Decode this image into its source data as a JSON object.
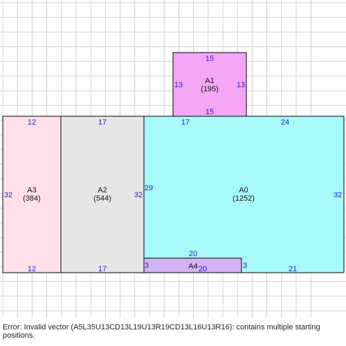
{
  "colors": {
    "grid": "#d0d0d0",
    "border": "#000000",
    "dimension_text": "#1f1fcc",
    "label_text": "#111111"
  },
  "areas": [
    {
      "id": "A1",
      "label": "A1",
      "area": "(195)",
      "fill": "#f5a6f5",
      "dims": {
        "top": "15",
        "bottom": "15",
        "left": "13",
        "right": "13"
      }
    },
    {
      "id": "A3",
      "label": "A3",
      "area": "(384)",
      "fill": "#ffe0ea",
      "dims": {
        "top": "12",
        "bottom": "12",
        "left": "32",
        "right": "32"
      }
    },
    {
      "id": "A2",
      "label": "A2",
      "area": "(544)",
      "fill": "#e6e6e6",
      "dims": {
        "top": "17",
        "bottom": "17",
        "right": "32"
      }
    },
    {
      "id": "A0",
      "label": "A0",
      "area": "(1252)",
      "fill": "#a8fafa",
      "dims": {
        "top_left": "17",
        "top_right": "24",
        "left": "29",
        "right": "32",
        "inner": "20",
        "bottom": "21",
        "notch": "3"
      }
    },
    {
      "id": "A4",
      "label": "A4",
      "area": "",
      "fill": "#d4b3f5",
      "dims": {
        "top": "20",
        "bottom": "20",
        "left": "3",
        "right": "3"
      }
    }
  ],
  "error_message": "Error: Invalid vector (A5L35U13CD13L19U13R19CD13L16U13R16): contains multiple starting positions."
}
